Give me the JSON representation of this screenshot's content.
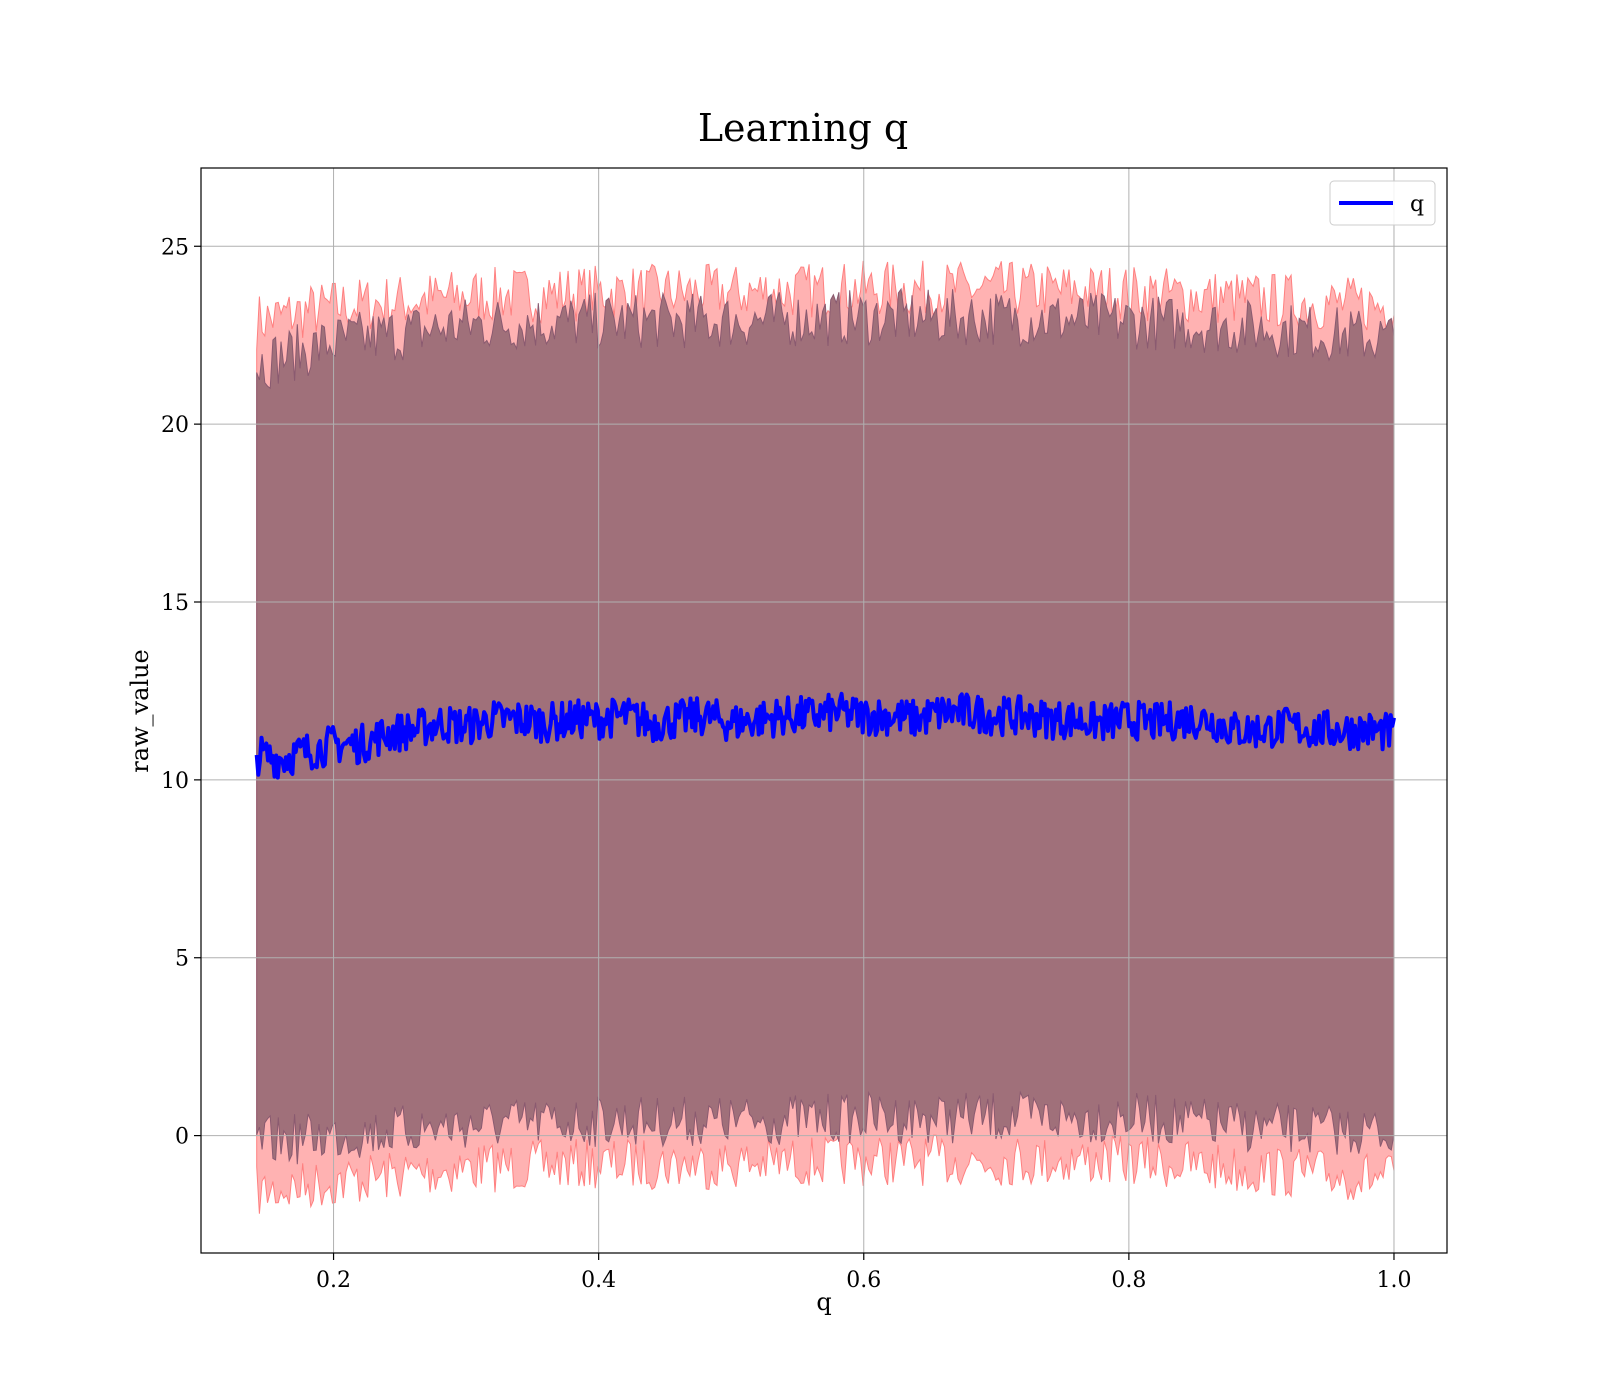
{
  "chart_data": {
    "type": "line",
    "title": "Learning q",
    "xlabel": "q",
    "ylabel": "raw_value",
    "xlim": [
      0.1,
      1.04
    ],
    "ylim": [
      -3.3,
      27.2
    ],
    "xticks": [
      0.2,
      0.4,
      0.6,
      0.8,
      1.0
    ],
    "xtick_labels": [
      "0.2",
      "0.4",
      "0.6",
      "0.8",
      "1.0"
    ],
    "yticks": [
      0,
      5,
      10,
      15,
      20,
      25
    ],
    "ytick_labels": [
      "0",
      "5",
      "10",
      "15",
      "20",
      "25"
    ],
    "grid": true,
    "legend": {
      "placement": "top-right",
      "entries": [
        "q"
      ]
    },
    "series": [
      {
        "name": "q",
        "color": "#0000ff",
        "x": [
          0.142,
          0.16,
          0.18,
          0.2,
          0.22,
          0.24,
          0.26,
          0.28,
          0.3,
          0.32,
          0.34,
          0.36,
          0.38,
          0.4,
          0.42,
          0.44,
          0.46,
          0.48,
          0.5,
          0.52,
          0.54,
          0.56,
          0.58,
          0.6,
          0.62,
          0.64,
          0.66,
          0.68,
          0.7,
          0.72,
          0.74,
          0.76,
          0.78,
          0.8,
          0.82,
          0.84,
          0.86,
          0.88,
          0.9,
          0.92,
          0.94,
          0.96,
          0.98,
          1.0
        ],
        "y": [
          10.7,
          10.6,
          10.8,
          11.0,
          11.0,
          11.3,
          11.4,
          11.6,
          11.5,
          11.7,
          11.7,
          11.6,
          11.7,
          11.7,
          11.8,
          11.6,
          11.7,
          11.8,
          11.6,
          11.7,
          11.8,
          11.8,
          11.9,
          11.8,
          11.8,
          11.7,
          11.9,
          11.9,
          11.8,
          11.8,
          11.7,
          11.7,
          11.6,
          11.7,
          11.6,
          11.7,
          11.7,
          11.4,
          11.4,
          11.5,
          11.4,
          11.4,
          11.4,
          11.3
        ]
      }
    ],
    "bands": [
      {
        "color": "#a0707a",
        "x": [
          0.142,
          0.2,
          0.3,
          0.4,
          0.5,
          0.6,
          0.7,
          0.8,
          0.9,
          1.0
        ],
        "upper": [
          21.7,
          22.3,
          22.8,
          22.9,
          22.9,
          23.0,
          23.0,
          22.9,
          22.7,
          22.4
        ],
        "lower": [
          -0.2,
          0.0,
          0.3,
          0.4,
          0.4,
          0.5,
          0.5,
          0.5,
          0.2,
          0.1
        ]
      },
      {
        "color": "#ff6666",
        "x": [
          0.142,
          0.2,
          0.3,
          0.4,
          0.5,
          0.6,
          0.7,
          0.8,
          0.9,
          1.0
        ],
        "upper": [
          22.9,
          23.3,
          23.6,
          23.7,
          23.7,
          23.8,
          23.8,
          23.7,
          23.5,
          23.3
        ],
        "lower": [
          -1.6,
          -1.3,
          -0.9,
          -0.8,
          -0.8,
          -0.7,
          -0.7,
          -0.7,
          -1.0,
          -1.2
        ]
      }
    ]
  }
}
